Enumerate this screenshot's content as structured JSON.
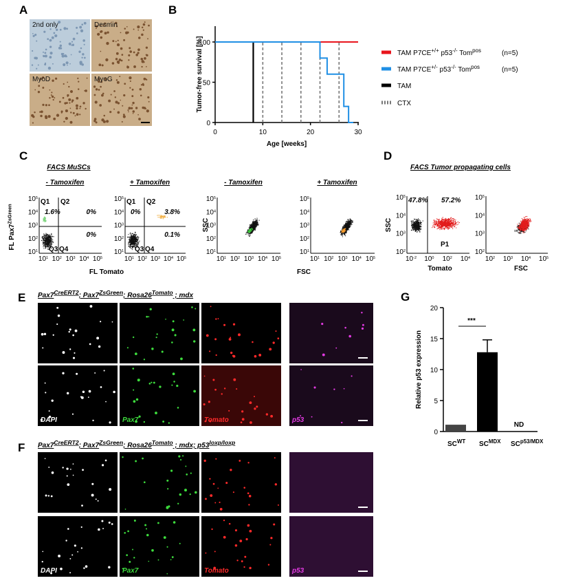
{
  "chart_data": [
    {
      "type": "line",
      "panel_label": "B",
      "y_label": "Tumor-free survival [%]",
      "x_label": "Age [weeks]",
      "xlim": [
        0,
        30
      ],
      "xticks": [
        0,
        10,
        20,
        30
      ],
      "ylim": [
        0,
        100
      ],
      "yticks": [
        0,
        50,
        100
      ],
      "series": [
        {
          "name": [
            "TAM P7CE",
            {
              "sup": "+/+"
            },
            " p53",
            {
              "sup": "-/-"
            },
            " Tom",
            {
              "sup": "pos"
            }
          ],
          "count_label": "(n=5)",
          "color": "#e8141c",
          "x": [
            0,
            30
          ],
          "values": [
            100,
            100
          ]
        },
        {
          "name": [
            "TAM P7CE",
            {
              "sup": "+/-"
            },
            " p53",
            {
              "sup": "-/-"
            },
            " Tom",
            {
              "sup": "pos"
            }
          ],
          "count_label": "(n=5)",
          "color": "#1f8fe5",
          "x": [
            0,
            22,
            22,
            23.5,
            23.5,
            27,
            27,
            28,
            28,
            29
          ],
          "values": [
            100,
            100,
            80,
            80,
            60,
            60,
            20,
            20,
            0,
            0
          ]
        }
      ],
      "markers": [
        {
          "name": "TAM",
          "color": "#000000",
          "dash": false,
          "x": [
            8
          ]
        },
        {
          "name": "CTX",
          "color": "#777777",
          "dash": true,
          "x": [
            10,
            14,
            18,
            22,
            26
          ]
        }
      ]
    },
    {
      "type": "bar",
      "panel_label": "G",
      "y_label": "Relative p53 expression",
      "categories": [
        [
          "SC",
          {
            "sup": "WT"
          }
        ],
        [
          "SC",
          {
            "sup": "MDX"
          }
        ],
        [
          "SC",
          {
            "sup": "p53/MDX"
          }
        ]
      ],
      "values": [
        1.1,
        12.8,
        null
      ],
      "errors": [
        null,
        2.0,
        null
      ],
      "colors": [
        "#444444",
        "#000000",
        "#000000"
      ],
      "ylim": [
        0,
        20
      ],
      "yticks": [
        0,
        5,
        10,
        15,
        20
      ],
      "significance": "***",
      "missing_label": "ND"
    }
  ],
  "panel_a": {
    "letter": "A",
    "images": [
      "2nd only",
      "Desmin",
      "MyoD",
      "MyoG"
    ]
  },
  "panel_c": {
    "letter": "C",
    "title": "FACS MuSCs",
    "y_label": [
      "FL Pax7",
      {
        "sup": "ZsGreen"
      }
    ],
    "x_label": "FL Tomato",
    "y_label_2": "SSC",
    "x_label_2": "FSC",
    "log_base": "10",
    "ticks": [
      "1",
      "2",
      "3",
      "4",
      "5"
    ],
    "plots": [
      {
        "subtitle": "- Tamoxifen",
        "quadrants": [
          "Q1",
          "Q2",
          "Q3",
          "Q4"
        ],
        "q1": "1.6%",
        "q2": "0%",
        "q4": "0%"
      },
      {
        "subtitle": "+ Tamoxifen",
        "quadrants": [
          "Q1",
          "Q2",
          "Q3",
          "Q4"
        ],
        "q1": "0%",
        "q2": "3.8%",
        "q4": "0.1%"
      },
      {
        "subtitle": "- Tamoxifen"
      },
      {
        "subtitle": "+ Tamoxifen"
      }
    ]
  },
  "panel_d": {
    "letter": "D",
    "title": "FACS Tumor propagating cells",
    "y_label": "SSC",
    "x_label_1": "Tomato",
    "x_label_2": "FSC",
    "log_base": "10",
    "y_ticks": [
      "2",
      "3",
      "4",
      "5"
    ],
    "x_ticks_1": [
      "-2",
      "0",
      "2",
      "4"
    ],
    "x_ticks_2": [
      "2",
      "3",
      "4",
      "5"
    ],
    "left": "47.8%",
    "right": "57.2%",
    "gate": "P1"
  },
  "panel_e": {
    "letter": "E",
    "title": [
      "Pax7",
      {
        "sup": "CreERT2"
      },
      "; Pax7",
      {
        "sup": "ZsGreen"
      },
      "; Rosa26",
      {
        "sup": "Tomato"
      },
      " ; mdx"
    ],
    "channels": [
      "DAPI",
      "Pax7",
      "Tomato",
      "p53"
    ]
  },
  "panel_f": {
    "letter": "F",
    "title": [
      "Pax7",
      {
        "sup": "CreERT2"
      },
      "; Pax7",
      {
        "sup": "ZsGreen"
      },
      "; Rosa26",
      {
        "sup": "Tomato"
      },
      " ; mdx; p53",
      {
        "sup": "loxp/loxp"
      }
    ],
    "channels": [
      "DAPI",
      "Pax7",
      "Tomato",
      "p53"
    ]
  }
}
